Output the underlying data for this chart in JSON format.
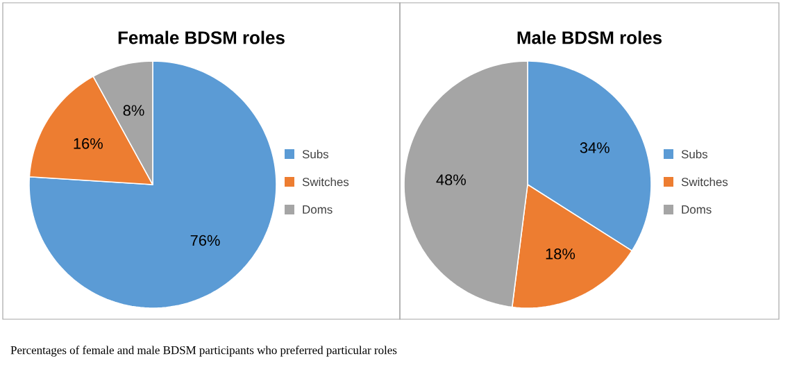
{
  "chart_data": [
    {
      "type": "pie",
      "title": "Female BDSM roles",
      "categories": [
        "Subs",
        "Switches",
        "Doms"
      ],
      "values": [
        76,
        16,
        8
      ],
      "value_labels": [
        "76%",
        "16%",
        "8%"
      ],
      "colors": [
        "#5b9bd5",
        "#ed7d31",
        "#a5a5a5"
      ],
      "legend": "right"
    },
    {
      "type": "pie",
      "title": "Male BDSM roles",
      "categories": [
        "Subs",
        "Switches",
        "Doms"
      ],
      "values": [
        34,
        18,
        48
      ],
      "value_labels": [
        "34%",
        "18%",
        "48%"
      ],
      "colors": [
        "#5b9bd5",
        "#ed7d31",
        "#a5a5a5"
      ],
      "legend": "right",
      "annotations": [
        "Percentages of female and male BDSM participants who preferred particular roles"
      ]
    }
  ]
}
